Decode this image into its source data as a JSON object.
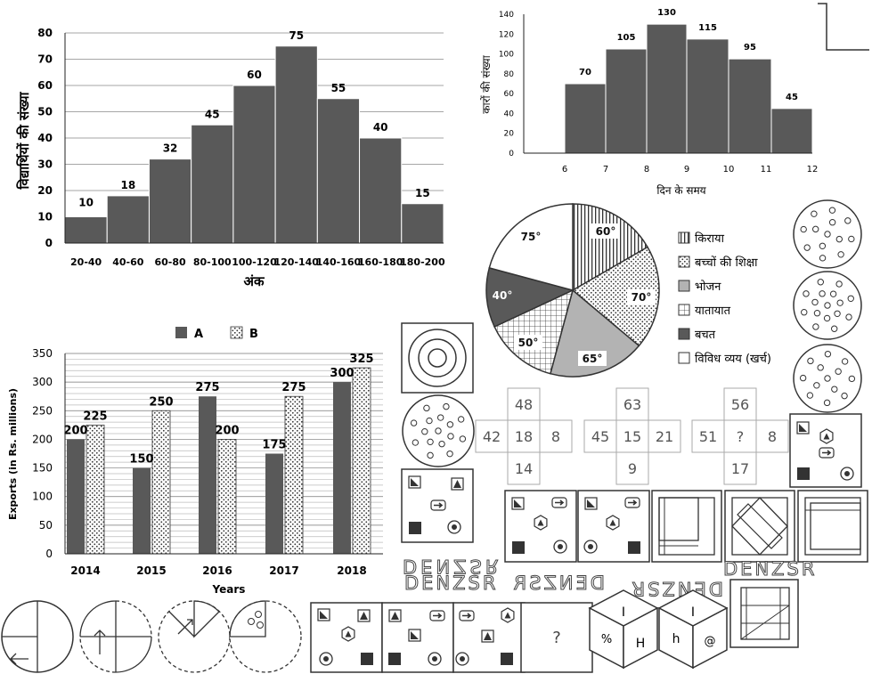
{
  "chart_data": [
    {
      "type": "bar",
      "categories": [
        "20-40",
        "40-60",
        "60-80",
        "80-100",
        "100-120",
        "120-140",
        "140-160",
        "160-180",
        "180-200"
      ],
      "values": [
        10,
        18,
        32,
        45,
        60,
        75,
        55,
        40,
        15
      ],
      "xlabel": "अंक",
      "ylabel": "विद्यार्थियों की संख्या",
      "ylim": [
        0,
        80
      ],
      "yticks": [
        0,
        10,
        20,
        30,
        40,
        50,
        60,
        70,
        80
      ],
      "grid": true
    },
    {
      "type": "bar",
      "x_ticks": [
        "6",
        "7",
        "8",
        "9",
        "10",
        "11",
        "12"
      ],
      "values": [
        70,
        105,
        130,
        115,
        95,
        45
      ],
      "xlabel": "दिन के समय",
      "ylabel": "कारों की संख्या",
      "ylim": [
        0,
        140
      ],
      "yticks": [
        0,
        20,
        40,
        60,
        80,
        100,
        120,
        140
      ],
      "grid": false
    },
    {
      "type": "pie",
      "labels": [
        "किराया",
        "बच्चों की शिक्षा",
        "भोजन",
        "यातायात",
        "बचत",
        "विविध व्यय (खर्च)"
      ],
      "values": [
        60,
        70,
        65,
        50,
        40,
        75
      ],
      "value_labels": [
        "60°",
        "70°",
        "65°",
        "50°",
        "40°",
        "75°"
      ],
      "legend_position": "right"
    },
    {
      "type": "bar",
      "categories": [
        "2014",
        "2015",
        "2016",
        "2017",
        "2018"
      ],
      "series": [
        {
          "name": "A",
          "values": [
            200,
            150,
            275,
            175,
            300
          ]
        },
        {
          "name": "B",
          "values": [
            225,
            250,
            200,
            275,
            325
          ]
        }
      ],
      "xlabel": "Years",
      "ylabel": "Exports (in Rs. millions)",
      "ylim": [
        0,
        350
      ],
      "yticks": [
        0,
        50,
        100,
        150,
        200,
        250,
        300,
        350
      ],
      "grid": true,
      "legend_position": "top"
    }
  ],
  "number_puzzle": [
    {
      "top": "48",
      "left": "42",
      "center": "18",
      "right": "8",
      "bottom": "14"
    },
    {
      "top": "63",
      "left": "45",
      "center": "15",
      "right": "21",
      "bottom": "9"
    },
    {
      "top": "56",
      "left": "51",
      "center": "?",
      "right": "8",
      "bottom": "17"
    }
  ],
  "mirror_text": {
    "question": "DENZSR",
    "options": [
      "DENZSR",
      "DENZSR",
      "DENZSR",
      "DENZSR"
    ]
  },
  "symbol_figure": {
    "question_mark": "?"
  },
  "cube": {
    "faces": [
      "I",
      "%",
      "H",
      "I",
      "h",
      "@"
    ]
  },
  "colors": {
    "bar": "#595959",
    "axis": "#222222",
    "grid": "#888888",
    "border": "#555555"
  }
}
